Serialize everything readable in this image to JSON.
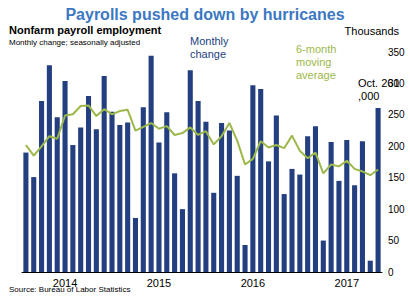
{
  "chart_data": {
    "type": "bar",
    "title": "Payrolls pushed down by hurricanes",
    "subtitle": "Nonfarm payroll employment",
    "caption": "Monthly change; seasonally adjusted",
    "ylabel": "Thousands",
    "source": "Source: Bureau of Labor Statistics",
    "annotations": [
      {
        "text": "Oct. 261,000"
      }
    ],
    "categories": [
      null,
      null,
      null,
      null,
      null,
      "2014",
      null,
      null,
      null,
      null,
      null,
      null,
      null,
      null,
      null,
      null,
      null,
      "2015",
      null,
      null,
      null,
      null,
      null,
      null,
      null,
      null,
      null,
      null,
      null,
      "2016",
      null,
      null,
      null,
      null,
      null,
      null,
      null,
      null,
      null,
      null,
      null,
      "2017",
      null,
      null,
      null,
      null
    ],
    "series": [
      {
        "name": "Monthly change",
        "type": "bar",
        "color": "#233f7f",
        "values": [
          190,
          151,
          272,
          329,
          246,
          304,
          202,
          230,
          280,
          227,
          312,
          255,
          234,
          238,
          86,
          262,
          344,
          206,
          254,
          157,
          100,
          321,
          272,
          239,
          126,
          237,
          225,
          153,
          43,
          297,
          291,
          176,
          249,
          124,
          164,
          155,
          216,
          232,
          50,
          207,
          145,
          210,
          138,
          208,
          18,
          261
        ]
      },
      {
        "name": "6-month moving average",
        "type": "line",
        "color": "#9cb84a",
        "values": [
          202,
          185,
          200,
          216,
          212,
          249,
          251,
          264,
          265,
          248,
          259,
          251,
          256,
          258,
          225,
          231,
          237,
          228,
          232,
          218,
          221,
          230,
          218,
          224,
          203,
          216,
          237,
          209,
          171,
          180,
          208,
          198,
          202,
          197,
          217,
          193,
          181,
          190,
          157,
          171,
          168,
          177,
          164,
          160,
          154,
          163
        ]
      }
    ],
    "ylim": [
      0,
      350
    ],
    "yticks": [
      0,
      50,
      100,
      150,
      200,
      250,
      300,
      350
    ],
    "grid": false
  }
}
